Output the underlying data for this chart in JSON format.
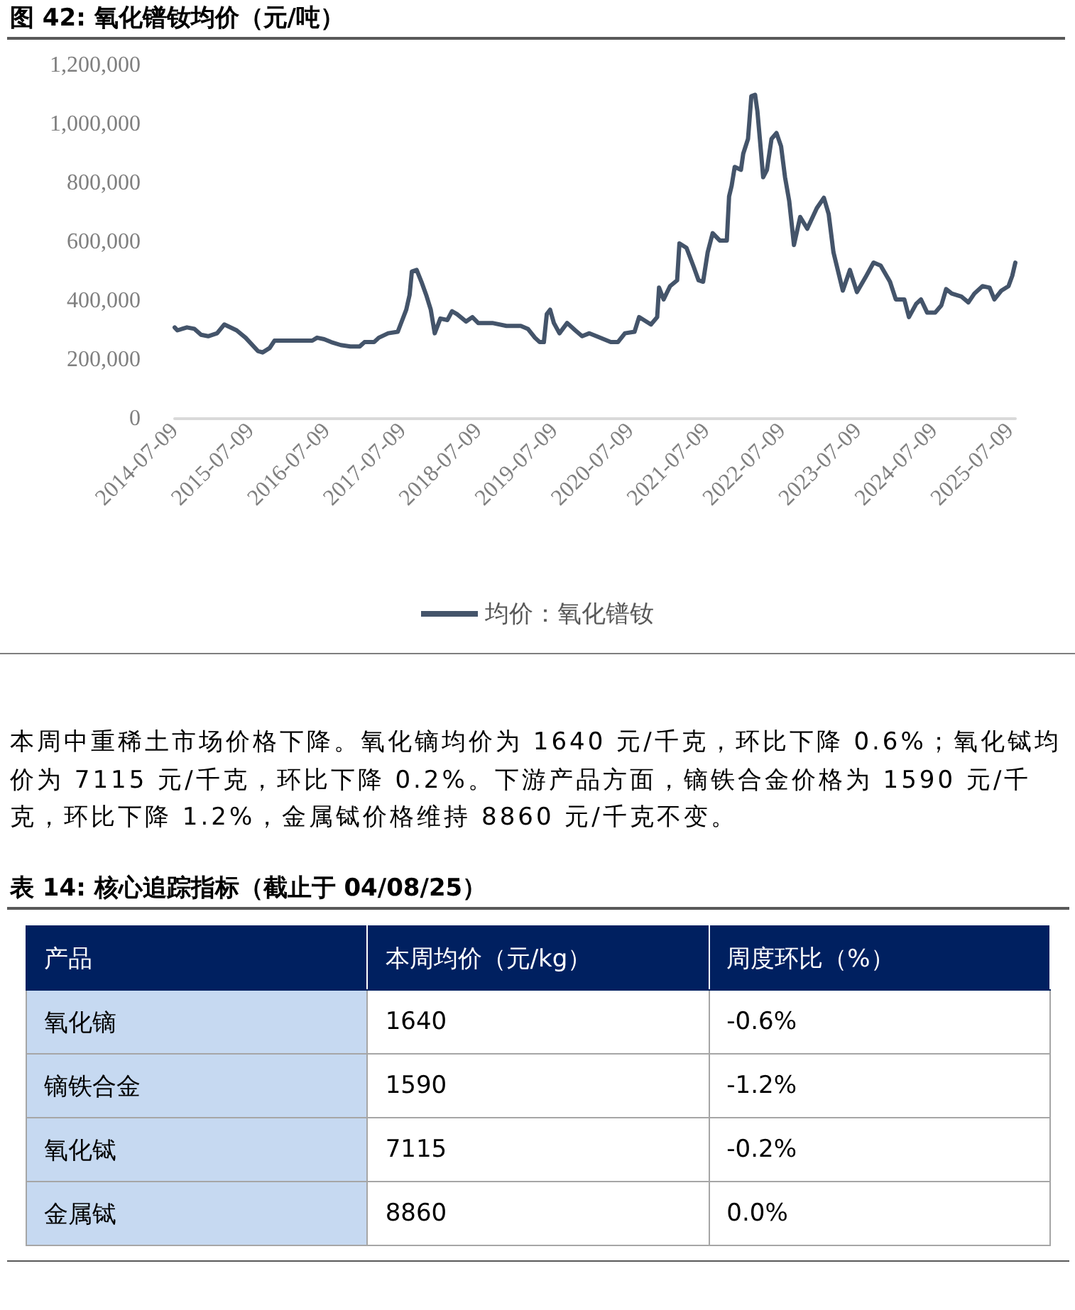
{
  "chart_data": [
    {
      "type": "line",
      "title": "图 42: 氧化镨钕均价（元/吨）",
      "x": [
        "2014-07-09",
        "2014-07-22",
        "2014-09-06",
        "2014-10-12",
        "2014-11-13",
        "2014-12-17",
        "2015-01-29",
        "2015-03-05",
        "2015-05-03",
        "2015-06-15",
        "2015-08-13",
        "2015-09-05",
        "2015-10-09",
        "2015-11-01",
        "2015-12-16",
        "2016-02-01",
        "2016-05-01",
        "2016-05-24",
        "2016-06-27",
        "2016-07-31",
        "2016-09-15",
        "2016-10-31",
        "2016-12-15",
        "2017-01-07",
        "2017-02-22",
        "2017-03-17",
        "2017-05-01",
        "2017-06-16",
        "2017-06-27",
        "2017-07-27",
        "2017-08-12",
        "2017-08-23",
        "2017-09-15",
        "2017-10-08",
        "2017-10-31",
        "2017-11-22",
        "2017-12-11",
        "2018-01-07",
        "2018-02-10",
        "2018-03-04",
        "2018-03-28",
        "2018-05-11",
        "2018-06-10",
        "2018-07-08",
        "2018-09-14",
        "2018-11-21",
        "2019-01-29",
        "2019-03-04",
        "2019-04-07",
        "2019-04-30",
        "2019-05-20",
        "2019-06-03",
        "2019-06-19",
        "2019-07-07",
        "2019-08-03",
        "2019-09-09",
        "2019-10-18",
        "2019-11-20",
        "2019-12-25",
        "2020-01-28",
        "2020-04-06",
        "2020-05-10",
        "2020-06-13",
        "2020-07-29",
        "2020-08-20",
        "2020-10-16",
        "2020-11-15",
        "2020-11-24",
        "2020-12-16",
        "2021-01-16",
        "2021-02-19",
        "2021-03-02",
        "2021-04-05",
        "2021-05-10",
        "2021-06-02",
        "2021-06-24",
        "2021-07-16",
        "2021-08-09",
        "2021-09-12",
        "2021-10-16",
        "2021-10-27",
        "2021-11-08",
        "2021-11-23",
        "2021-12-23",
        "2022-01-03",
        "2022-01-26",
        "2022-02-11",
        "2022-03-01",
        "2022-03-12",
        "2022-03-24",
        "2022-04-09",
        "2022-04-27",
        "2022-05-19",
        "2022-06-12",
        "2022-07-04",
        "2022-07-23",
        "2022-08-12",
        "2022-09-04",
        "2022-10-04",
        "2022-11-07",
        "2022-12-23",
        "2023-01-26",
        "2023-02-18",
        "2023-03-13",
        "2023-04-27",
        "2023-05-31",
        "2023-07-04",
        "2023-08-18",
        "2023-09-22",
        "2023-10-26",
        "2023-12-10",
        "2024-01-07",
        "2024-02-17",
        "2024-03-10",
        "2024-04-14",
        "2024-05-07",
        "2024-06-06",
        "2024-07-14",
        "2024-08-13",
        "2024-09-05",
        "2024-10-02",
        "2024-11-17",
        "2024-12-21",
        "2025-01-19",
        "2025-02-27",
        "2025-04-02",
        "2025-04-25",
        "2025-05-29",
        "2025-07-02",
        "2025-07-20",
        "2025-08-04"
      ],
      "series": [
        {
          "name": "均价：氧化镨钕",
          "color": "#44546a",
          "values": [
            310000,
            300000,
            310000,
            305000,
            285000,
            280000,
            290000,
            320000,
            300000,
            275000,
            230000,
            225000,
            240000,
            265000,
            265000,
            265000,
            265000,
            275000,
            270000,
            260000,
            250000,
            245000,
            245000,
            260000,
            260000,
            275000,
            290000,
            295000,
            315000,
            370000,
            420000,
            500000,
            505000,
            465000,
            420000,
            370000,
            290000,
            340000,
            335000,
            365000,
            355000,
            330000,
            345000,
            325000,
            325000,
            315000,
            315000,
            305000,
            275000,
            260000,
            260000,
            355000,
            370000,
            325000,
            290000,
            325000,
            300000,
            280000,
            290000,
            280000,
            260000,
            260000,
            290000,
            295000,
            345000,
            320000,
            345000,
            445000,
            405000,
            450000,
            470000,
            595000,
            580000,
            515000,
            470000,
            465000,
            565000,
            630000,
            605000,
            605000,
            755000,
            790000,
            855000,
            845000,
            900000,
            950000,
            1095000,
            1100000,
            1045000,
            950000,
            820000,
            845000,
            950000,
            970000,
            925000,
            820000,
            740000,
            590000,
            685000,
            645000,
            715000,
            750000,
            695000,
            565000,
            435000,
            505000,
            430000,
            485000,
            530000,
            520000,
            465000,
            405000,
            405000,
            345000,
            390000,
            405000,
            360000,
            360000,
            385000,
            440000,
            425000,
            415000,
            395000,
            425000,
            450000,
            445000,
            405000,
            435000,
            450000,
            485000,
            530000
          ]
        }
      ],
      "xlim": [
        "2014-07-09",
        "2025-08-04"
      ],
      "xticks": [
        "2014-07-09",
        "2015-07-09",
        "2016-07-09",
        "2017-07-09",
        "2018-07-09",
        "2019-07-09",
        "2020-07-09",
        "2021-07-09",
        "2022-07-09",
        "2023-07-09",
        "2024-07-09",
        "2025-07-09"
      ],
      "ylim": [
        0,
        1200000
      ],
      "yticks": [
        0,
        {
          "value": 200000,
          "label": "200,000"
        },
        {
          "value": 400000,
          "label": "400,000"
        },
        {
          "value": 600000,
          "label": "600,000"
        },
        {
          "value": 800000,
          "label": "800,000"
        },
        {
          "value": 1000000,
          "label": "1,000,000"
        },
        {
          "value": 1200000,
          "label": "1,200,000"
        }
      ],
      "legend": "bottom",
      "line_style": "solid",
      "annotations": [
        "本周中重稀土市场价格下降。氧化镝均价为 1640 元/千克，环比下降 0.6%；氧化铽均价为 7115 元/千克，环比下降 0.2%。下游产品方面，镝铁合金价格为 1590 元/千克，环比下降 1.2%，金属铽价格维持 8860 元/千克不变。"
      ]
    },
    {
      "type": "other",
      "title": "表 14: 核心追踪指标（截止于 04/08/25）",
      "xlabel": "产品",
      "categories": [
        "氧化镝",
        "镝铁合金",
        "氧化铽",
        "金属铽"
      ],
      "series": [
        {
          "name": "本周均价（元/kg）",
          "values": [
            1640,
            1590,
            7115,
            8860
          ]
        },
        {
          "name": "周度环比（%）",
          "values": [
            -0.6,
            -1.2,
            -0.2,
            0.0
          ],
          "value_labels": [
            "-0.6%",
            "-1.2%",
            "-0.2%",
            "0.0%"
          ]
        }
      ],
      "data_labels": true
    }
  ]
}
